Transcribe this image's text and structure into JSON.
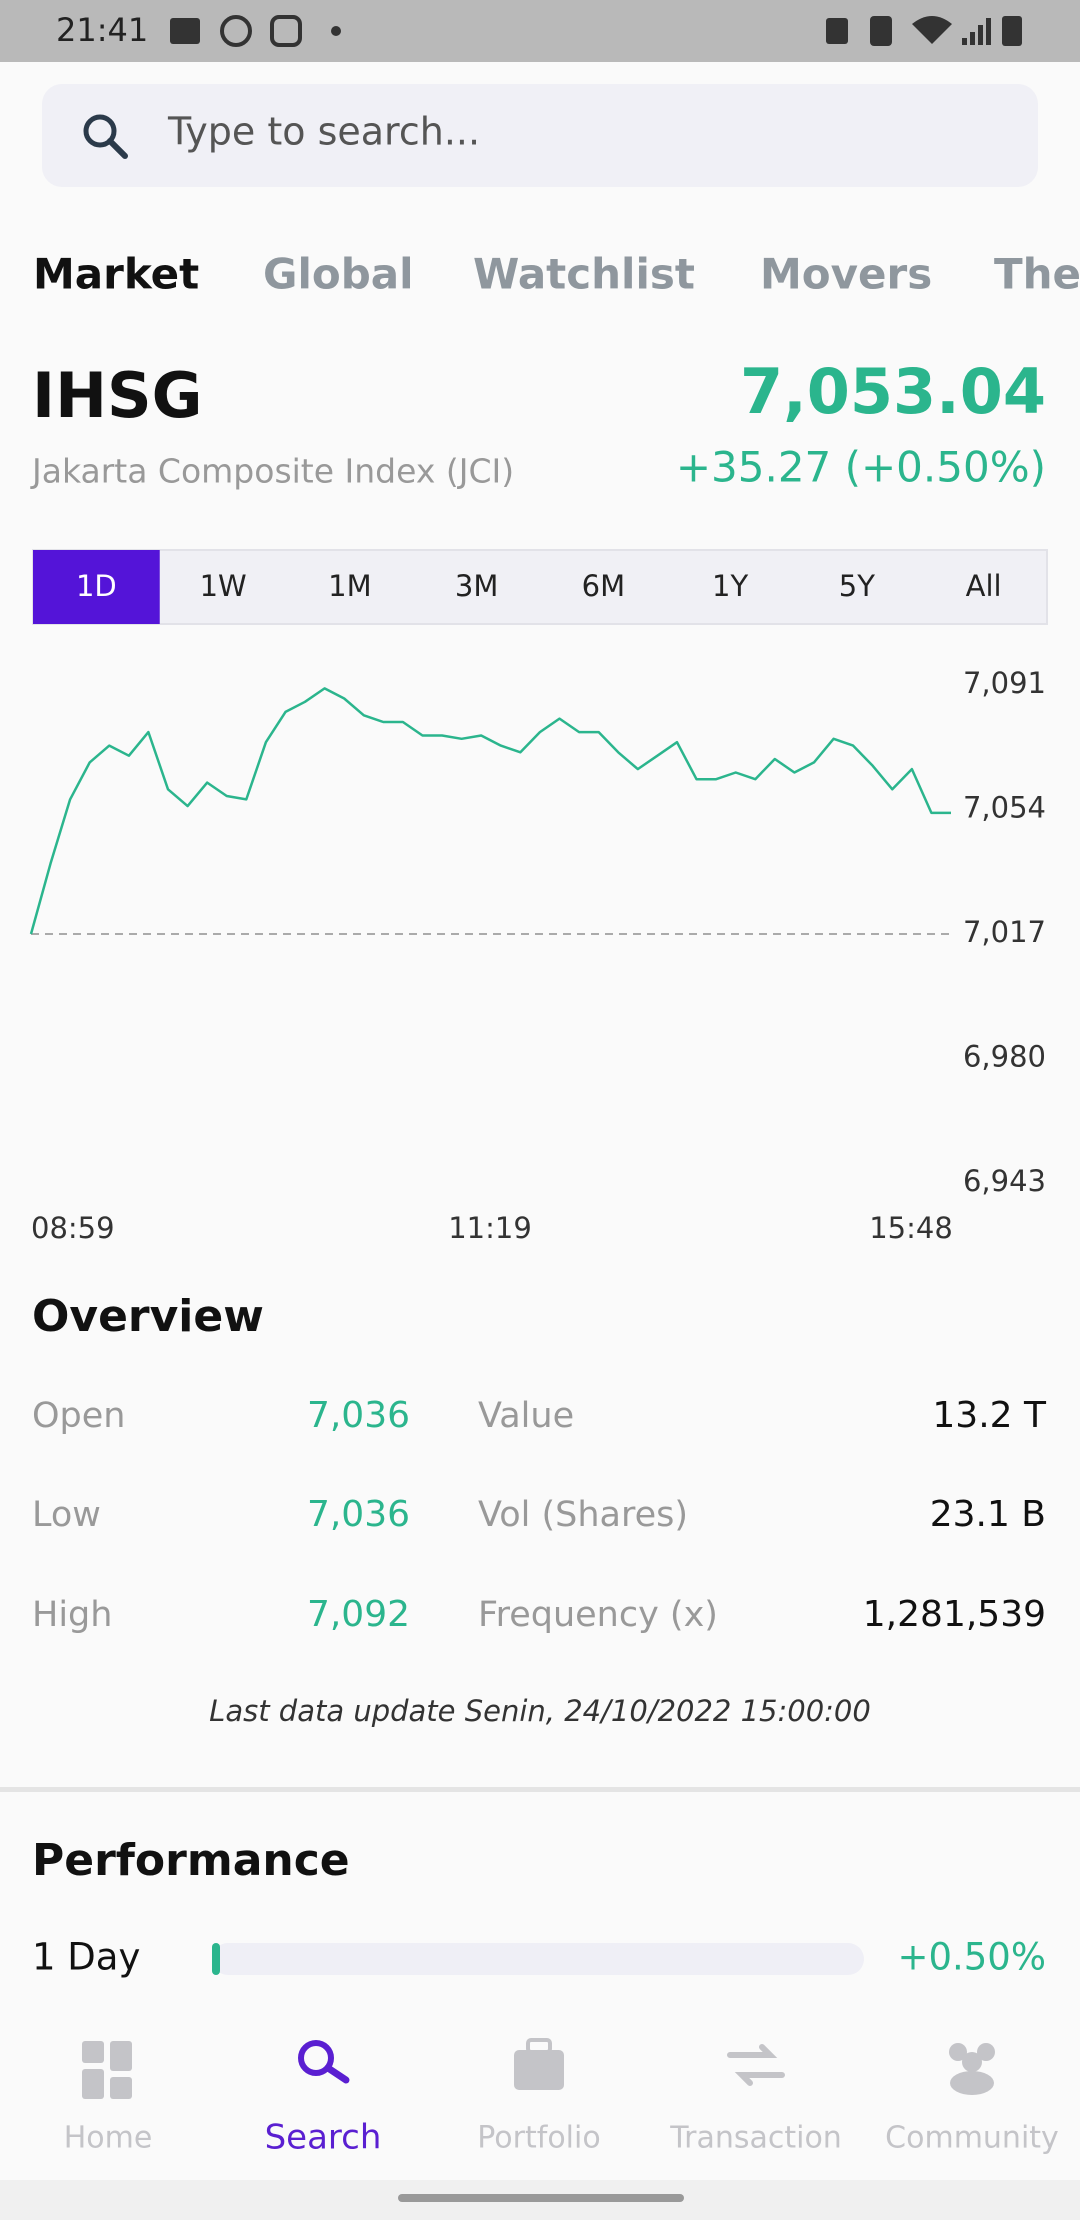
{
  "status_bar": {
    "time": "21:41"
  },
  "search": {
    "placeholder": "Type to search..."
  },
  "tabs": [
    "Market",
    "Global",
    "Watchlist",
    "Movers",
    "The"
  ],
  "index": {
    "code": "IHSG",
    "name": "Jakarta Composite Index (JCI)",
    "price": "7,053.04",
    "change": "+35.27 (+0.50%)"
  },
  "ranges": [
    "1D",
    "1W",
    "1M",
    "3M",
    "6M",
    "1Y",
    "5Y",
    "All"
  ],
  "chart": {
    "type": "line",
    "color": "#2bb58d",
    "values": [
      7017,
      7038,
      7057,
      7068,
      7073,
      7070,
      7077,
      7060,
      7055,
      7062,
      7058,
      7057,
      7074,
      7083,
      7086,
      7090,
      7087,
      7082,
      7080,
      7080,
      7076,
      7076,
      7075,
      7076,
      7073,
      7071,
      7077,
      7081,
      7077,
      7077,
      7071,
      7066,
      7070,
      7074,
      7063,
      7063,
      7065,
      7063,
      7069,
      7065,
      7068,
      7075,
      7073,
      7067,
      7060,
      7066,
      7053,
      7053
    ],
    "baseline": 7017,
    "ylim": [
      6943,
      7091
    ],
    "yticks": [
      {
        "value": 7091,
        "label": "7,091"
      },
      {
        "value": 7054,
        "label": "7,054"
      },
      {
        "value": 7017,
        "label": "7,017"
      },
      {
        "value": 6980,
        "label": "6,980"
      },
      {
        "value": 6943,
        "label": "6,943"
      }
    ],
    "x_labels": [
      "08:59",
      "11:19",
      "15:48"
    ]
  },
  "overview": {
    "title": "Overview",
    "left": [
      {
        "label": "Open",
        "value": "7,036"
      },
      {
        "label": "Low",
        "value": "7,036"
      },
      {
        "label": "High",
        "value": "7,092"
      }
    ],
    "right": [
      {
        "label": "Value",
        "value": "13.2 T"
      },
      {
        "label": "Vol (Shares)",
        "value": "23.1 B"
      },
      {
        "label": "Frequency (x)",
        "value": "1,281,539"
      }
    ],
    "last_update": "Last data update Senin, 24/10/2022 15:00:00"
  },
  "performance": {
    "title": "Performance",
    "rows": [
      {
        "label": "1 Day",
        "value": 0.5,
        "value_label": "+0.50%"
      }
    ]
  },
  "nav": [
    "Home",
    "Search",
    "Portfolio",
    "Transaction",
    "Community"
  ]
}
